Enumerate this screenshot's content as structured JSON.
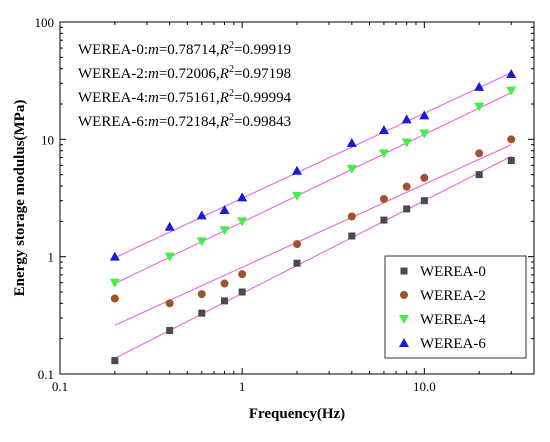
{
  "chart_data": {
    "type": "scatter",
    "xlabel": "Frequency(Hz)",
    "ylabel": "Energy storage modulus(MPa)",
    "xscale": "log",
    "yscale": "log",
    "xlim": [
      0.1,
      40
    ],
    "ylim": [
      0.1,
      100
    ],
    "x_ticks": [
      {
        "value": 0.1,
        "label": "0.1"
      },
      {
        "value": 1,
        "label": "1"
      },
      {
        "value": 10,
        "label": "10.0"
      }
    ],
    "y_ticks": [
      {
        "value": 0.1,
        "label": "0.1"
      },
      {
        "value": 1,
        "label": "1"
      },
      {
        "value": 10,
        "label": "10"
      },
      {
        "value": 100,
        "label": "100"
      }
    ],
    "grid": false,
    "legend_position": "bottom-right",
    "annotations": [
      {
        "prefix": "WEREA-0:",
        "m_label": "m",
        "m_value": "=0.78714,",
        "r_label": "R",
        "r_sup": "2",
        "r_value": "=0.99919"
      },
      {
        "prefix": "WEREA-2:",
        "m_label": "m",
        "m_value": "=0.72006,",
        "r_label": "R",
        "r_sup": "2",
        "r_value": "=0.97198"
      },
      {
        "prefix": "WEREA-4:",
        "m_label": "m",
        "m_value": "=0.75161,",
        "r_label": "R",
        "r_sup": "2",
        "r_value": "=0.99994"
      },
      {
        "prefix": "WEREA-6:",
        "m_label": "m",
        "m_value": "=0.72184,",
        "r_label": "R",
        "r_sup": "2",
        "r_value": "=0.99843"
      }
    ],
    "fit_line_color": "#ee66dd",
    "series": [
      {
        "name": "WEREA-0",
        "marker": "square",
        "color": "#4a4a4a",
        "x": [
          0.2,
          0.4,
          0.6,
          0.8,
          1,
          2,
          4,
          6,
          8,
          10,
          20,
          30
        ],
        "y": [
          0.13,
          0.235,
          0.33,
          0.42,
          0.5,
          0.88,
          1.5,
          2.05,
          2.55,
          3.0,
          5.0,
          6.6
        ],
        "fit": {
          "x": [
            0.2,
            30
          ],
          "y": [
            0.136,
            7.16
          ]
        }
      },
      {
        "name": "WEREA-2",
        "marker": "circle",
        "color": "#a0522d",
        "x": [
          0.2,
          0.4,
          0.6,
          0.8,
          1,
          2,
          4,
          6,
          8,
          10,
          20,
          30
        ],
        "y": [
          0.44,
          0.4,
          0.48,
          0.59,
          0.71,
          1.28,
          2.2,
          3.1,
          3.95,
          4.7,
          7.6,
          10.0
        ],
        "fit": {
          "x": [
            0.2,
            30
          ],
          "y": [
            0.26,
            9.0
          ]
        }
      },
      {
        "name": "WEREA-4",
        "marker": "triangle-down",
        "color": "#44ee44",
        "x": [
          0.2,
          0.4,
          0.6,
          0.8,
          1,
          2,
          4,
          6,
          8,
          10,
          20,
          30
        ],
        "y": [
          0.6,
          1.0,
          1.35,
          1.68,
          2.0,
          3.3,
          5.6,
          7.6,
          9.4,
          11.2,
          19.0,
          26.0
        ],
        "fit": {
          "x": [
            0.2,
            30
          ],
          "y": [
            0.59,
            25.0
          ]
        }
      },
      {
        "name": "WEREA-6",
        "marker": "triangle-up",
        "color": "#1a1ad9",
        "x": [
          0.2,
          0.4,
          0.6,
          0.8,
          1,
          2,
          4,
          6,
          8,
          10,
          20,
          30
        ],
        "y": [
          1.0,
          1.8,
          2.25,
          2.5,
          3.2,
          5.4,
          9.3,
          12.0,
          14.8,
          16.0,
          28.0,
          36.0
        ],
        "fit": {
          "x": [
            0.2,
            30
          ],
          "y": [
            0.98,
            37.0
          ]
        }
      }
    ]
  }
}
